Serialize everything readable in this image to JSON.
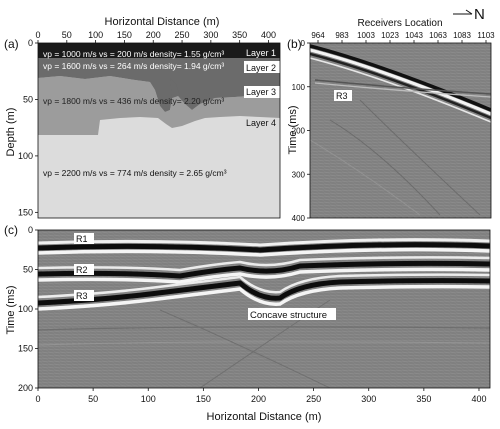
{
  "compass": {
    "letter": "N"
  },
  "panel_a": {
    "label": "(a)",
    "title": "Horizontal Distance (m)",
    "ylabel": "Depth (m)",
    "xticks": [
      "0",
      "50",
      "100",
      "150",
      "200",
      "250",
      "300",
      "350",
      "400"
    ],
    "yticks": [
      "0",
      "50",
      "100",
      "150"
    ],
    "layers": [
      {
        "name": "Layer 1",
        "text": "vp = 1000 m/s vs = 200 m/s density= 1.55 g/cm³",
        "color": "#1a1a1a"
      },
      {
        "name": "Layer 2",
        "text": "vp = 1600 m/s vs = 264 m/s density= 1.94 g/cm³",
        "color": "#6b6b6b"
      },
      {
        "name": "Layer 3",
        "text": "vp = 1800 m/s vs = 436 m/s density= 2.20 g/cm³",
        "color": "#9c9c9c"
      },
      {
        "name": "Layer 4",
        "text": "vp = 2200 m/s vs = 774 m/s density = 2.65 g/cm³",
        "color": "#dcdcdc"
      }
    ]
  },
  "panel_b": {
    "label": "(b)",
    "title": "Receivers Location",
    "ylabel": "Time (ms)",
    "xticks": [
      "964",
      "983",
      "1003",
      "1023",
      "1043",
      "1063",
      "1083",
      "1103"
    ],
    "yticks": [
      "0",
      "100",
      "200",
      "300",
      "400"
    ],
    "event_label": "R3"
  },
  "panel_c": {
    "label": "(c)",
    "xlabel": "Horizontal Distance (m)",
    "ylabel": "Time (ms)",
    "xticks": [
      "0",
      "50",
      "100",
      "150",
      "200",
      "250",
      "300",
      "350",
      "400"
    ],
    "yticks": [
      "0",
      "50",
      "100",
      "150",
      "200"
    ],
    "events": [
      "R1",
      "R2",
      "R3"
    ],
    "annotation": "Concave structure"
  }
}
